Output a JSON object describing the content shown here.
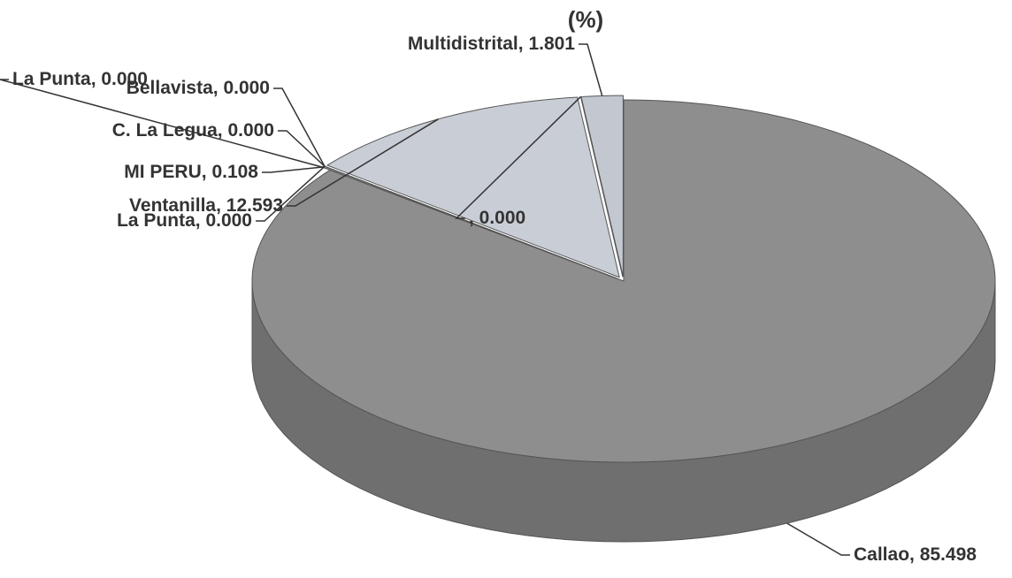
{
  "chart_data": {
    "type": "pie3d",
    "title": "(%)",
    "label_separator": ", ",
    "categories": [
      "Callao",
      "La Punta",
      "MI PERU",
      "C. La Legua",
      "Bellavista",
      "La Punta",
      "Ventanilla",
      null,
      "Multidistrital"
    ],
    "values": [
      85.498,
      0,
      0.108,
      0,
      0,
      0,
      12.593,
      0,
      1.801
    ],
    "value_labels": [
      "85.498",
      "0.000",
      "0.108",
      "0.000",
      "0.000",
      "0.000",
      "12.593",
      "0.000",
      "1.801"
    ],
    "colors": [
      "#8e8e8e",
      "#9a9a9a",
      "#b0b0b0",
      "#a8a8a8",
      "#a8a8a8",
      "#a8a8a8",
      "#c9ced6",
      "#b8b8b8",
      "#c3c8d0"
    ]
  }
}
